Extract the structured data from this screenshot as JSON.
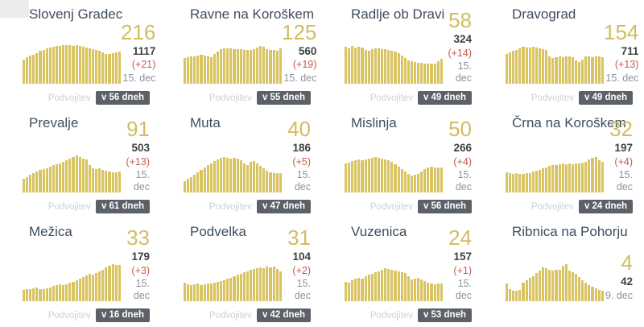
{
  "labels": {
    "doubling": "Podvojitev"
  },
  "colors": {
    "gold": "#d2bc62",
    "bar": "#d8c463",
    "red": "#c65a50",
    "title": "#3f4d5d",
    "dark": "#3f3f3f",
    "gray": "#8e939a",
    "label": "#ccd1d5",
    "badge_bg": "#5b6167",
    "badge_text": "#ffffff"
  },
  "cards": [
    {
      "title": "Slovenj Gradec",
      "big": "216",
      "total": "1117",
      "change": "(+21)",
      "date": "15. dec",
      "doubling": "v 56 dneh"
    },
    {
      "title": "Ravne na Koroškem",
      "big": "125",
      "total": "560",
      "change": "(+19)",
      "date": "15. dec",
      "doubling": "v 55 dneh"
    },
    {
      "title": "Radlje ob Dravi",
      "big": "58",
      "total": "324",
      "change": "(+14)",
      "date": "15. dec",
      "doubling": "v 49 dneh"
    },
    {
      "title": "Dravograd",
      "big": "154",
      "total": "711",
      "change": "(+13)",
      "date": "15. dec",
      "doubling": "v 49 dneh"
    },
    {
      "title": "Prevalje",
      "big": "91",
      "total": "503",
      "change": "(+13)",
      "date": "15. dec",
      "doubling": "v 61 dneh"
    },
    {
      "title": "Muta",
      "big": "40",
      "total": "186",
      "change": "(+5)",
      "date": "15. dec",
      "doubling": "v 47 dneh"
    },
    {
      "title": "Mislinja",
      "big": "50",
      "total": "266",
      "change": "(+4)",
      "date": "15. dec",
      "doubling": "v 56 dneh"
    },
    {
      "title": "Črna na Koroškem",
      "big": "32",
      "total": "197",
      "change": "(+4)",
      "date": "15. dec",
      "doubling": "v 24 dneh"
    },
    {
      "title": "Mežica",
      "big": "33",
      "total": "179",
      "change": "(+3)",
      "date": "15. dec",
      "doubling": "v 16 dneh"
    },
    {
      "title": "Podvelka",
      "big": "31",
      "total": "104",
      "change": "(+2)",
      "date": "15. dec",
      "doubling": "v 42 dneh"
    },
    {
      "title": "Vuzenica",
      "big": "24",
      "total": "157",
      "change": "(+1)",
      "date": "15. dec",
      "doubling": "v 53 dneh"
    },
    {
      "title": "Ribnica na Pohorju",
      "big": "4",
      "total": "42",
      "change": null,
      "date": "9. dec",
      "doubling": null
    }
  ],
  "chart_data": [
    {
      "type": "bar",
      "municipality": "Slovenj Gradec",
      "unit": "relative_height_percent",
      "values": [
        63,
        68,
        72,
        76,
        80,
        85,
        88,
        91,
        93,
        95,
        97,
        98,
        100,
        99,
        100,
        98,
        99,
        97,
        96,
        94,
        92,
        90,
        88,
        85,
        81,
        78,
        77,
        79,
        82,
        84
      ]
    },
    {
      "type": "bar",
      "municipality": "Ravne na Koroškem",
      "unit": "relative_height_percent",
      "values": [
        66,
        68,
        70,
        71,
        73,
        74,
        72,
        70,
        69,
        77,
        83,
        90,
        92,
        91,
        92,
        90,
        89,
        90,
        88,
        87,
        88,
        90,
        93,
        97,
        95,
        90,
        88,
        87,
        86,
        91
      ]
    },
    {
      "type": "bar",
      "municipality": "Radlje ob Dravi",
      "unit": "relative_height_percent",
      "values": [
        95,
        92,
        97,
        94,
        96,
        93,
        88,
        86,
        90,
        92,
        91,
        90,
        89,
        88,
        86,
        84,
        80,
        73,
        66,
        61,
        58,
        56,
        55,
        54,
        53,
        52,
        52,
        53,
        58,
        64
      ]
    },
    {
      "type": "bar",
      "municipality": "Dravograd",
      "unit": "relative_height_percent",
      "values": [
        78,
        82,
        85,
        88,
        92,
        95,
        93,
        94,
        96,
        93,
        91,
        90,
        88,
        70,
        66,
        68,
        70,
        69,
        71,
        70,
        68,
        60,
        57,
        63,
        70,
        71,
        69,
        70,
        70,
        69
      ]
    },
    {
      "type": "bar",
      "municipality": "Prevalje",
      "unit": "relative_height_percent",
      "values": [
        35,
        40,
        45,
        49,
        55,
        58,
        60,
        63,
        66,
        70,
        73,
        76,
        80,
        84,
        88,
        92,
        95,
        91,
        88,
        85,
        70,
        62,
        60,
        62,
        58,
        57,
        55,
        53,
        52,
        55
      ]
    },
    {
      "type": "bar",
      "municipality": "Muta",
      "unit": "relative_height_percent",
      "values": [
        30,
        35,
        40,
        46,
        52,
        58,
        64,
        70,
        76,
        81,
        86,
        89,
        91,
        89,
        88,
        90,
        88,
        84,
        76,
        70,
        79,
        81,
        75,
        68,
        62,
        57,
        53,
        51,
        50,
        49
      ]
    },
    {
      "type": "bar",
      "municipality": "Mislinja",
      "unit": "relative_height_percent",
      "values": [
        75,
        78,
        81,
        83,
        85,
        84,
        86,
        88,
        90,
        92,
        90,
        88,
        86,
        84,
        80,
        72,
        66,
        60,
        54,
        47,
        44,
        45,
        48,
        54,
        60,
        64,
        66,
        65,
        64,
        65
      ]
    },
    {
      "type": "bar",
      "municipality": "Črna na Koroškem",
      "unit": "relative_height_percent",
      "values": [
        52,
        50,
        48,
        50,
        48,
        47,
        49,
        51,
        54,
        57,
        59,
        62,
        65,
        68,
        71,
        70,
        72,
        74,
        72,
        75,
        73,
        76,
        75,
        78,
        80,
        86,
        90,
        92,
        84,
        80
      ]
    },
    {
      "type": "bar",
      "municipality": "Mežica",
      "unit": "relative_height_percent",
      "values": [
        30,
        32,
        31,
        33,
        35,
        32,
        31,
        33,
        36,
        39,
        41,
        43,
        41,
        44,
        47,
        50,
        54,
        58,
        63,
        67,
        70,
        68,
        73,
        77,
        82,
        87,
        92,
        96,
        94,
        93
      ]
    },
    {
      "type": "bar",
      "municipality": "Podvelka",
      "unit": "relative_height_percent",
      "values": [
        48,
        44,
        42,
        43,
        45,
        42,
        44,
        46,
        45,
        47,
        49,
        52,
        55,
        58,
        61,
        65,
        68,
        71,
        74,
        78,
        81,
        84,
        86,
        88,
        86,
        89,
        87,
        90,
        84,
        78
      ]
    },
    {
      "type": "bar",
      "municipality": "Vuzenica",
      "unit": "relative_height_percent",
      "values": [
        50,
        48,
        55,
        58,
        61,
        59,
        64,
        68,
        71,
        74,
        78,
        82,
        86,
        83,
        81,
        79,
        77,
        75,
        72,
        64,
        56,
        59,
        60,
        56,
        52,
        47,
        45,
        44,
        46,
        45
      ]
    },
    {
      "type": "bar",
      "municipality": "Ribnica na Pohorju",
      "unit": "relative_height_percent",
      "values": [
        45,
        32,
        28,
        27,
        30,
        48,
        55,
        60,
        65,
        72,
        80,
        88,
        85,
        82,
        80,
        82,
        81,
        92,
        95,
        80,
        75,
        70,
        62,
        55,
        48,
        42,
        38,
        34,
        30,
        27
      ]
    }
  ]
}
